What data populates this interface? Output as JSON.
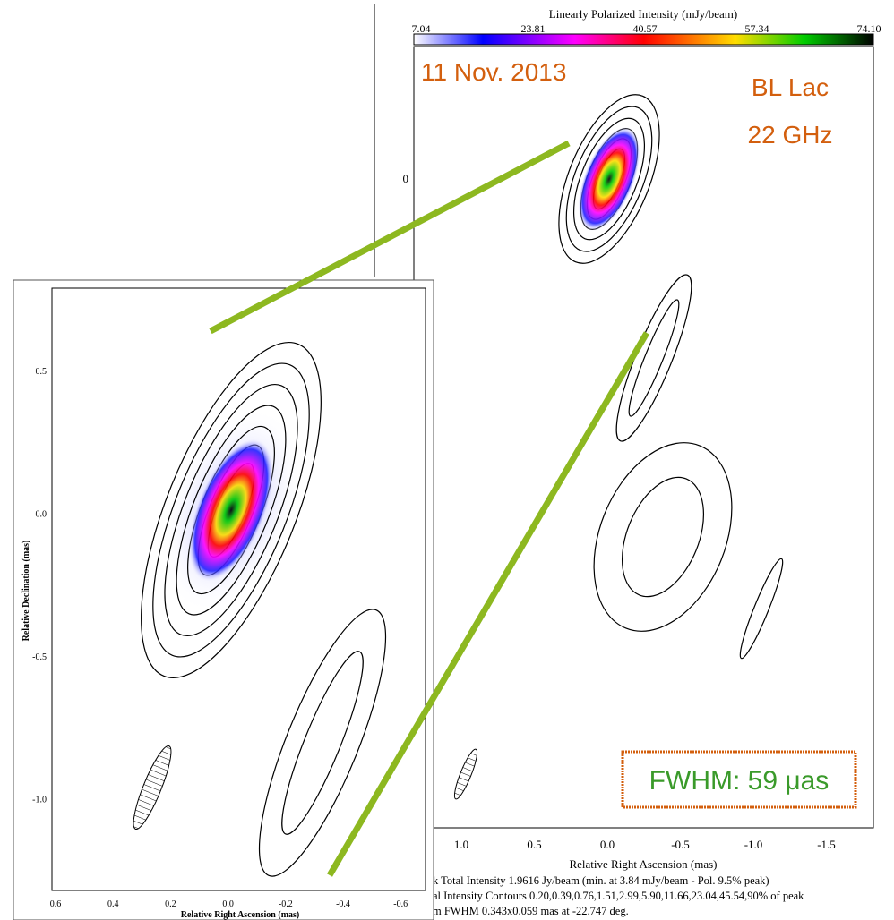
{
  "right_panel": {
    "colorbar": {
      "title": "Linearly Polarized Intensity (mJy/beam)",
      "ticks": [
        "7.04",
        "23.81",
        "40.57",
        "57.34",
        "74.10"
      ]
    },
    "epoch": "11 Nov. 2013",
    "source": "BL Lac",
    "frequency": "22 GHz",
    "y_ticks": [
      "0"
    ],
    "x_ticks": [
      "1.0",
      "0.5",
      "0.0",
      "-0.5",
      "-1.0",
      "-1.5"
    ],
    "x_label": "Relative Right Ascension (mas)",
    "caption": [
      "k Total Intensity 1.9616 Jy/beam (min. at 3.84 mJy/beam - Pol. 9.5% peak)",
      "al Intensity Contours 0.20,0.39,0.76,1.51,2.99,5.90,11.66,23.04,45.54,90% of peak",
      "m FWHM 0.343x0.059 mas at -22.747 deg."
    ],
    "beam_box": "FWHM: 59 μas"
  },
  "left_panel": {
    "y_ticks": [
      "0.5",
      "0.0",
      "-0.5",
      "-1.0"
    ],
    "y_label": "Relative Declination (mas)",
    "x_ticks": [
      "0.6",
      "0.4",
      "0.2",
      "0.0",
      "-0.2",
      "-0.4",
      "-0.6"
    ],
    "x_label": "Relative Right Ascension (mas)"
  }
}
